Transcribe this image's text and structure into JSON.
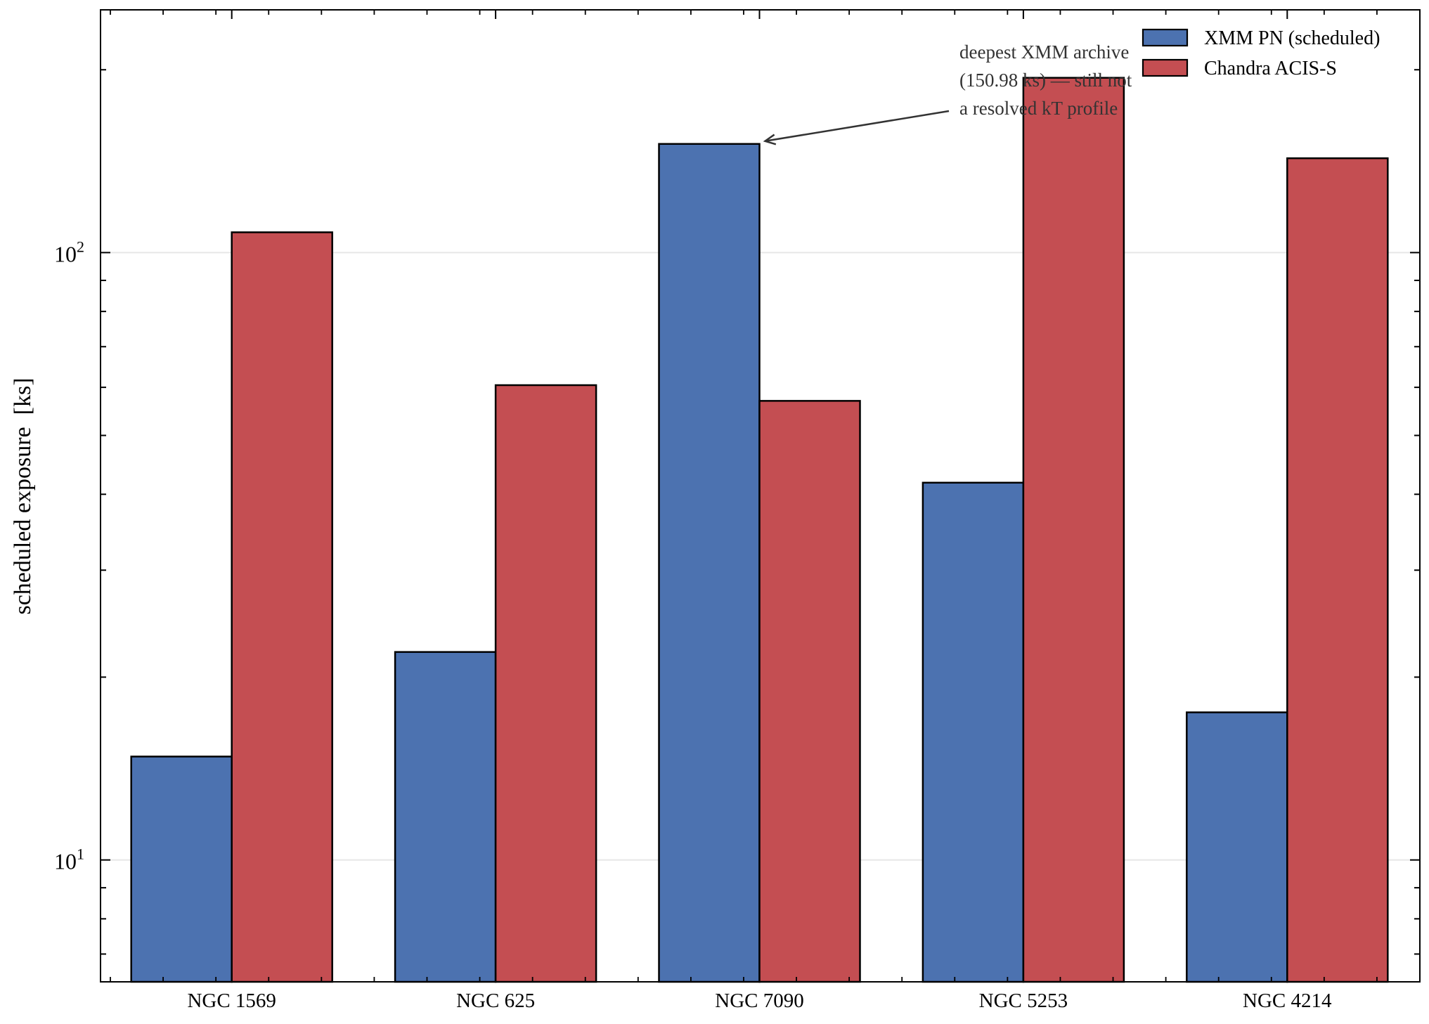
{
  "chart_data": {
    "type": "bar",
    "title": "",
    "xlabel": "",
    "ylabel": "scheduled exposure  [ks]",
    "yscale": "log",
    "ylim": [
      6.3,
      251
    ],
    "yticks": [
      {
        "value": 10,
        "label_base": "10",
        "label_exp": "1"
      },
      {
        "value": 100,
        "label_base": "10",
        "label_exp": "2"
      }
    ],
    "grid": "horizontal major lines at decades",
    "legend_position": "upper right",
    "categories": [
      "NGC 1569",
      "NGC 625",
      "NGC 7090",
      "NGC 5253",
      "NGC 4214"
    ],
    "series": [
      {
        "name": "XMM PN (scheduled)",
        "color": "#4c72b0",
        "values": [
          14.8,
          22.0,
          150.98,
          41.8,
          17.5
        ]
      },
      {
        "name": "Chandra ACIS-S",
        "color": "#c44e52",
        "values": [
          108,
          60.5,
          57.0,
          194,
          143
        ]
      }
    ],
    "annotation": {
      "lines": [
        "deepest XMM archive",
        "(150.98 ks) — still not",
        "a resolved kT profile"
      ],
      "target_category": "NGC 7090",
      "target_series": "XMM PN (scheduled)",
      "target_value": 150.98
    }
  }
}
